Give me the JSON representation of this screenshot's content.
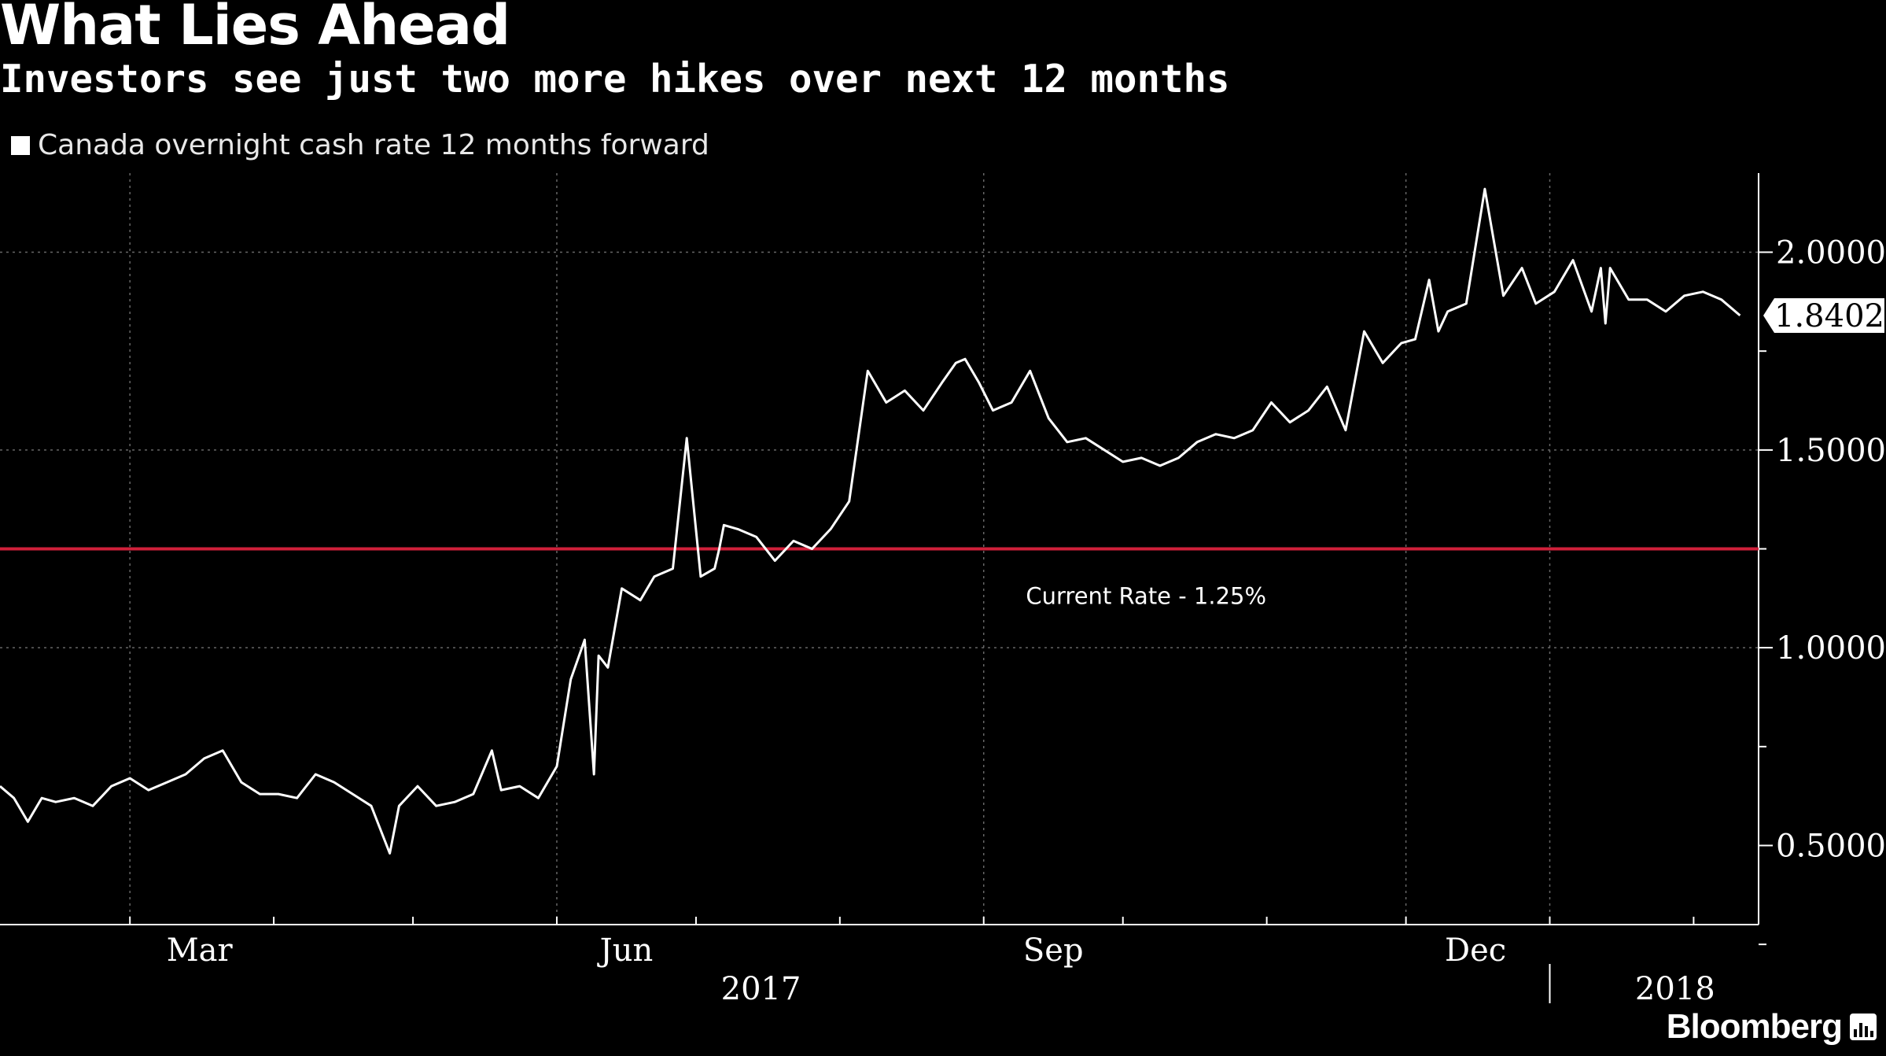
{
  "header": {
    "title": "What Lies Ahead",
    "subtitle": "Investors see just two more hikes over next 12 months"
  },
  "legend": {
    "label": "Canada overnight cash rate 12 months forward",
    "color": "#ffffff"
  },
  "brand": {
    "name": "Bloomberg",
    "icon": "bloomberg-bars-icon"
  },
  "colors": {
    "background": "#000000",
    "series": "#ffffff",
    "reference": "#d0203a",
    "grid": "#666666"
  },
  "chart_data": {
    "type": "line",
    "title": "What Lies Ahead",
    "subtitle": "Investors see just two more hikes over next 12 months",
    "x_axis": {
      "range": [
        "2017-02-01",
        "2018-02-15"
      ],
      "month_ticks": [
        "Mar",
        "Jun",
        "Sep",
        "Dec"
      ],
      "month_tick_dates": [
        "2017-03-01",
        "2017-06-01",
        "2017-09-01",
        "2017-12-01"
      ],
      "year_labels": [
        "2017",
        "2018"
      ],
      "year_boundary": "2018-01-01"
    },
    "y_axis": {
      "range": [
        0.3,
        2.2
      ],
      "tick_values": [
        0.5,
        1.0,
        1.5,
        2.0
      ],
      "tick_labels": [
        "0.5000",
        "1.0000",
        "1.5000",
        "2.0000"
      ],
      "grid_values": [
        1.0,
        1.5,
        2.0
      ],
      "position": "right"
    },
    "last_value_label": "1.8402",
    "reference_line": {
      "value": 1.25,
      "label": "Current Rate - 1.25%"
    },
    "series": [
      {
        "name": "Canada overnight cash rate 12 months forward",
        "x": [
          "2017-02-01",
          "2017-02-04",
          "2017-02-07",
          "2017-02-10",
          "2017-02-13",
          "2017-02-17",
          "2017-02-21",
          "2017-02-25",
          "2017-03-01",
          "2017-03-05",
          "2017-03-09",
          "2017-03-13",
          "2017-03-17",
          "2017-03-21",
          "2017-03-25",
          "2017-03-29",
          "2017-04-02",
          "2017-04-06",
          "2017-04-10",
          "2017-04-14",
          "2017-04-18",
          "2017-04-22",
          "2017-04-26",
          "2017-04-28",
          "2017-05-02",
          "2017-05-06",
          "2017-05-10",
          "2017-05-14",
          "2017-05-18",
          "2017-05-20",
          "2017-05-24",
          "2017-05-28",
          "2017-06-01",
          "2017-06-04",
          "2017-06-07",
          "2017-06-09",
          "2017-06-10",
          "2017-06-12",
          "2017-06-15",
          "2017-06-19",
          "2017-06-22",
          "2017-06-26",
          "2017-06-29",
          "2017-07-02",
          "2017-07-05",
          "2017-07-06",
          "2017-07-07",
          "2017-07-10",
          "2017-07-14",
          "2017-07-18",
          "2017-07-22",
          "2017-07-26",
          "2017-07-30",
          "2017-08-03",
          "2017-08-07",
          "2017-08-11",
          "2017-08-15",
          "2017-08-19",
          "2017-08-23",
          "2017-08-26",
          "2017-08-28",
          "2017-08-31",
          "2017-09-03",
          "2017-09-07",
          "2017-09-11",
          "2017-09-15",
          "2017-09-19",
          "2017-09-23",
          "2017-09-27",
          "2017-10-01",
          "2017-10-05",
          "2017-10-09",
          "2017-10-13",
          "2017-10-17",
          "2017-10-21",
          "2017-10-25",
          "2017-10-29",
          "2017-11-02",
          "2017-11-06",
          "2017-11-10",
          "2017-11-14",
          "2017-11-18",
          "2017-11-22",
          "2017-11-26",
          "2017-11-30",
          "2017-12-03",
          "2017-12-06",
          "2017-12-08",
          "2017-12-10",
          "2017-12-14",
          "2017-12-18",
          "2017-12-22",
          "2017-12-26",
          "2017-12-29",
          "2018-01-02",
          "2018-01-06",
          "2018-01-10",
          "2018-01-12",
          "2018-01-13",
          "2018-01-14",
          "2018-01-18",
          "2018-01-22",
          "2018-01-26",
          "2018-01-30",
          "2018-02-03",
          "2018-02-07",
          "2018-02-11"
        ],
        "values": [
          0.65,
          0.62,
          0.56,
          0.62,
          0.61,
          0.62,
          0.6,
          0.65,
          0.67,
          0.64,
          0.66,
          0.68,
          0.72,
          0.74,
          0.66,
          0.63,
          0.63,
          0.62,
          0.68,
          0.66,
          0.63,
          0.6,
          0.48,
          0.6,
          0.65,
          0.6,
          0.61,
          0.63,
          0.74,
          0.64,
          0.65,
          0.62,
          0.7,
          0.92,
          1.02,
          0.68,
          0.98,
          0.95,
          1.15,
          1.12,
          1.18,
          1.2,
          1.53,
          1.18,
          1.2,
          1.25,
          1.31,
          1.3,
          1.28,
          1.22,
          1.27,
          1.25,
          1.3,
          1.37,
          1.7,
          1.62,
          1.65,
          1.6,
          1.67,
          1.72,
          1.73,
          1.67,
          1.6,
          1.62,
          1.7,
          1.58,
          1.52,
          1.53,
          1.5,
          1.47,
          1.48,
          1.46,
          1.48,
          1.52,
          1.54,
          1.53,
          1.55,
          1.62,
          1.57,
          1.6,
          1.66,
          1.55,
          1.8,
          1.72,
          1.77,
          1.78,
          1.93,
          1.8,
          1.85,
          1.87,
          2.16,
          1.89,
          1.96,
          1.87,
          1.9,
          1.98,
          1.85,
          1.96,
          1.82,
          1.96,
          1.88,
          1.88,
          1.85,
          1.89,
          1.9,
          1.88,
          1.84
        ]
      }
    ]
  }
}
